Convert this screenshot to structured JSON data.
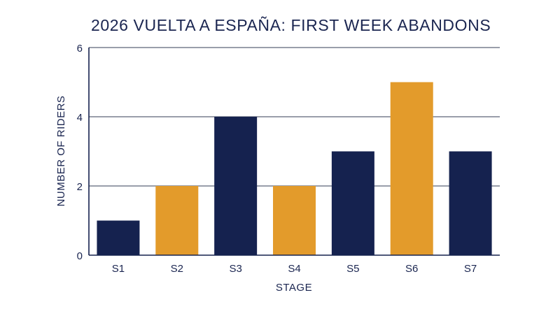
{
  "chart_data": {
    "type": "bar",
    "title": "2026 VUELTA A ESPAÑA: FIRST WEEK ABANDONS",
    "xlabel": "STAGE",
    "ylabel": "NUMBER OF RIDERS",
    "categories": [
      "S1",
      "S2",
      "S3",
      "S4",
      "S5",
      "S6",
      "S7"
    ],
    "values": [
      1,
      2,
      4,
      2,
      3,
      5,
      3
    ],
    "ylim": [
      0,
      6
    ],
    "yticks": [
      "0",
      "2",
      "4",
      "6"
    ],
    "grid": true,
    "colors": {
      "bars": [
        "#15224f",
        "#e39b2b",
        "#15224f",
        "#e39b2b",
        "#15224f",
        "#e39b2b",
        "#15224f"
      ],
      "text": "#1a2550",
      "grid": "#5c6378",
      "axis": "#15224f"
    }
  }
}
